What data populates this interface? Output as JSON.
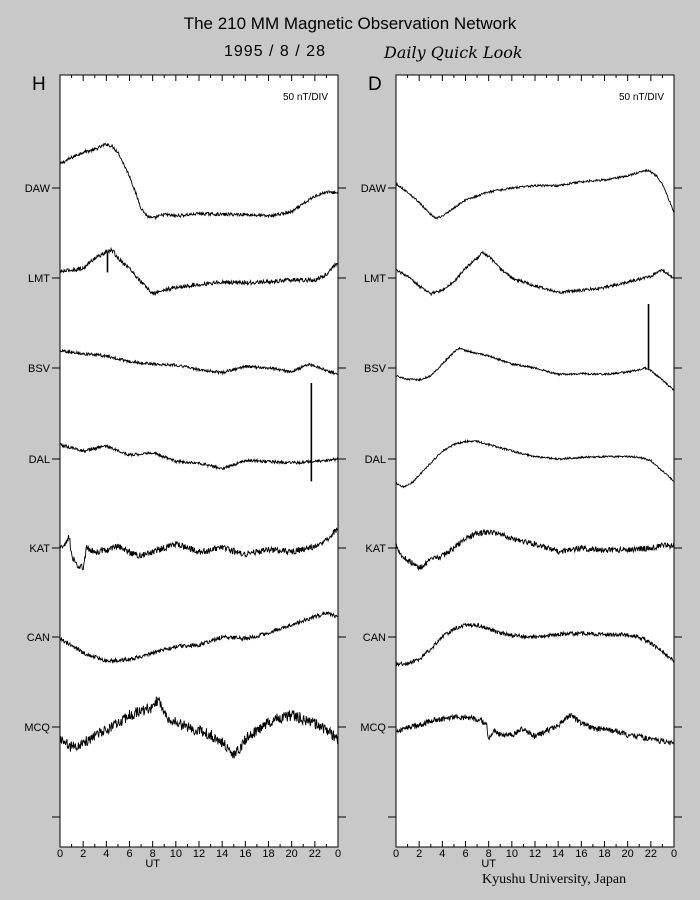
{
  "header": {
    "title": "The 210 MM Magnetic Observation Network",
    "date": "1995  /   8  /  28",
    "subtitle": "Daily Quick Look"
  },
  "footer": {
    "credit": "Kyushu University, Japan"
  },
  "chart_data": [
    {
      "type": "line",
      "panel_label": "H",
      "scale_label": "50 nT/DIV",
      "xlabel": "UT",
      "xlim": [
        0,
        24
      ],
      "xticks": [
        "0",
        "2",
        "4",
        "6",
        "8",
        "10",
        "12",
        "14",
        "16",
        "18",
        "20",
        "22",
        "0"
      ],
      "stations": [
        "DAW",
        "LMT",
        "BSV",
        "DAL",
        "KAT",
        "CAN",
        "MCQ"
      ],
      "y_units": "nT relative to station baseline (positive = up)",
      "series": [
        {
          "name": "DAW",
          "noise": 2,
          "x": [
            0,
            1,
            2,
            3,
            4,
            4.5,
            5,
            6,
            7,
            7.5,
            8,
            9,
            10,
            12,
            14,
            16,
            18,
            20,
            22,
            23,
            24
          ],
          "y": [
            30,
            38,
            45,
            48,
            55,
            52,
            45,
            15,
            -25,
            -35,
            -38,
            -33,
            -35,
            -32,
            -33,
            -33,
            -35,
            -30,
            -10,
            -5,
            -6
          ]
        },
        {
          "name": "LMT",
          "noise": 2.5,
          "x": [
            0,
            1,
            2,
            3,
            4,
            4.5,
            5,
            6,
            7,
            8,
            9,
            10,
            12,
            14,
            16,
            18,
            20,
            22,
            23,
            24
          ],
          "y": [
            8,
            10,
            12,
            25,
            32,
            35,
            25,
            12,
            -5,
            -20,
            -15,
            -12,
            -8,
            -5,
            -6,
            -5,
            -2,
            -3,
            5,
            20
          ],
          "spikes": [
            {
              "x": 4.1,
              "y": 7
            }
          ]
        },
        {
          "name": "BSV",
          "noise": 1.8,
          "x": [
            0,
            2,
            4,
            6,
            8,
            10,
            12,
            14,
            16,
            18,
            20,
            21.5,
            22,
            24
          ],
          "y": [
            22,
            18,
            15,
            8,
            5,
            4,
            -2,
            -6,
            2,
            0,
            -5,
            5,
            2,
            -8
          ]
        },
        {
          "name": "DAL",
          "noise": 1.8,
          "x": [
            0,
            2,
            4,
            6,
            8,
            10,
            12,
            14,
            16,
            18,
            20,
            22,
            24
          ],
          "y": [
            18,
            10,
            16,
            5,
            8,
            -3,
            -5,
            -12,
            -2,
            -3,
            -5,
            -3,
            0
          ],
          "spikes": [
            {
              "x": 21.7,
              "y": 95
            },
            {
              "x": 21.7,
              "y": -28
            }
          ]
        },
        {
          "name": "KAT",
          "noise": 4,
          "x": [
            0,
            0.5,
            0.8,
            1,
            1.5,
            2,
            2.3,
            2.6,
            3,
            4,
            5,
            6,
            7,
            8,
            9,
            10,
            12,
            14,
            16,
            18,
            20,
            22,
            23,
            24
          ],
          "y": [
            0,
            5,
            15,
            -10,
            -22,
            -25,
            0,
            -2,
            -5,
            -3,
            2,
            -5,
            -10,
            -5,
            0,
            5,
            -5,
            0,
            -8,
            -2,
            -5,
            2,
            10,
            25
          ]
        },
        {
          "name": "CAN",
          "noise": 2.5,
          "x": [
            0,
            1,
            2,
            3,
            4,
            6,
            8,
            10,
            12,
            14,
            16,
            18,
            20,
            22,
            23,
            24
          ],
          "y": [
            -2,
            -10,
            -20,
            -25,
            -30,
            -28,
            -20,
            -12,
            -10,
            0,
            -2,
            5,
            15,
            25,
            30,
            25
          ]
        },
        {
          "name": "MCQ",
          "noise": 7,
          "x": [
            0,
            1,
            2,
            3,
            4,
            5,
            6,
            7,
            8,
            8.5,
            9,
            10,
            12,
            13,
            14,
            14.5,
            15,
            15.5,
            16,
            17,
            18,
            19,
            20,
            21,
            22,
            23,
            24
          ],
          "y": [
            -15,
            -25,
            -20,
            -10,
            -5,
            5,
            15,
            20,
            25,
            35,
            15,
            5,
            -5,
            -10,
            -20,
            -25,
            -35,
            -28,
            -15,
            -5,
            5,
            12,
            15,
            10,
            5,
            -5,
            -15
          ]
        }
      ]
    },
    {
      "type": "line",
      "panel_label": "D",
      "scale_label": "50 nT/DIV",
      "xlabel": "UT",
      "xlim": [
        0,
        24
      ],
      "xticks": [
        "0",
        "2",
        "4",
        "6",
        "8",
        "10",
        "12",
        "14",
        "16",
        "18",
        "20",
        "22",
        "0"
      ],
      "stations": [
        "DAW",
        "LMT",
        "BSV",
        "DAL",
        "KAT",
        "CAN",
        "MCQ"
      ],
      "y_units": "nT relative to station baseline (positive = up)",
      "series": [
        {
          "name": "DAW",
          "noise": 1.3,
          "x": [
            0,
            1,
            2,
            3,
            3.5,
            4,
            5,
            6,
            8,
            10,
            12,
            14,
            16,
            18,
            20,
            21,
            21.8,
            22.5,
            23,
            24
          ],
          "y": [
            5,
            -5,
            -18,
            -33,
            -38,
            -35,
            -25,
            -15,
            -5,
            0,
            3,
            3,
            8,
            10,
            15,
            20,
            22,
            15,
            5,
            -30
          ]
        },
        {
          "name": "LMT",
          "noise": 1.8,
          "x": [
            0,
            1,
            2,
            3,
            4,
            5,
            6,
            7,
            7.5,
            8,
            9,
            10,
            12,
            14,
            16,
            18,
            20,
            22,
            23,
            24
          ],
          "y": [
            10,
            2,
            -10,
            -20,
            -15,
            -5,
            12,
            25,
            32,
            27,
            12,
            0,
            -10,
            -18,
            -15,
            -12,
            -5,
            2,
            10,
            0
          ]
        },
        {
          "name": "BSV",
          "noise": 1.2,
          "x": [
            0,
            1,
            2,
            3,
            4,
            5,
            5.5,
            6,
            7,
            8,
            10,
            12,
            14,
            16,
            18,
            20,
            21,
            21.5,
            22,
            23,
            24
          ],
          "y": [
            -10,
            -14,
            -15,
            -10,
            5,
            20,
            25,
            22,
            18,
            15,
            5,
            0,
            -8,
            -7,
            -8,
            -5,
            -2,
            0,
            -3,
            -15,
            -28
          ],
          "spikes": [
            {
              "x": 21.8,
              "y": 80
            }
          ]
        },
        {
          "name": "DAL",
          "noise": 1.2,
          "x": [
            0,
            0.5,
            1,
            1.5,
            2,
            3,
            4,
            5,
            6,
            7,
            8,
            10,
            12,
            14,
            16,
            18,
            20,
            21,
            22,
            23,
            24
          ],
          "y": [
            -30,
            -35,
            -33,
            -28,
            -20,
            -5,
            10,
            18,
            22,
            22,
            18,
            10,
            3,
            0,
            2,
            3,
            3,
            2,
            -2,
            -15,
            -28
          ]
        },
        {
          "name": "KAT",
          "noise": 3.5,
          "x": [
            0,
            0.5,
            1,
            1.5,
            2,
            2.5,
            3,
            4,
            5,
            6,
            7,
            8,
            9,
            10,
            12,
            14,
            16,
            18,
            20,
            22,
            23,
            24
          ],
          "y": [
            5,
            -10,
            -15,
            -20,
            -25,
            -20,
            -15,
            -10,
            0,
            12,
            18,
            20,
            18,
            12,
            5,
            -5,
            0,
            -3,
            -2,
            0,
            3,
            3
          ]
        },
        {
          "name": "CAN",
          "noise": 2.5,
          "x": [
            0,
            1,
            2,
            3,
            4,
            5,
            6,
            7,
            8,
            9,
            10,
            12,
            14,
            16,
            18,
            20,
            21,
            22,
            23,
            24
          ],
          "y": [
            -35,
            -33,
            -28,
            -15,
            0,
            10,
            15,
            15,
            10,
            5,
            2,
            0,
            3,
            5,
            3,
            3,
            0,
            -8,
            -18,
            -30
          ]
        },
        {
          "name": "MCQ",
          "noise": 3.5,
          "x": [
            0,
            1,
            2,
            3,
            4,
            5,
            6,
            7,
            7.8,
            8,
            8.5,
            9,
            10,
            11,
            12,
            13,
            14,
            15,
            16,
            17,
            18,
            19,
            20,
            21,
            22,
            23,
            24
          ],
          "y": [
            -8,
            0,
            2,
            8,
            10,
            12,
            12,
            10,
            5,
            -15,
            -5,
            -10,
            -10,
            -2,
            -12,
            -5,
            2,
            15,
            5,
            -2,
            -3,
            -5,
            -10,
            -12,
            -15,
            -18,
            -20
          ]
        }
      ]
    }
  ]
}
